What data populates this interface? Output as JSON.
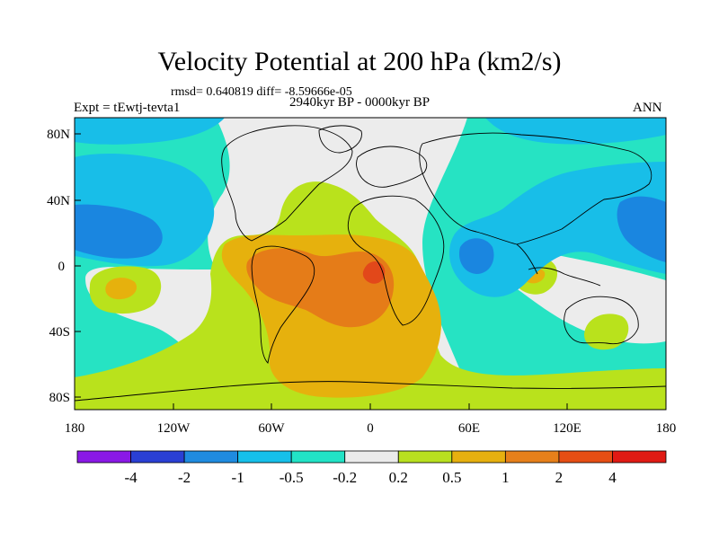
{
  "title": "Velocity Potential at 200 hPa (km2/s)",
  "stats_line": "rmsd= 0.640819 diff= -8.59666e-05",
  "left_label": "Expt = tEwtj-tevta1",
  "center_label": "2940kyr BP - 0000kyr BP",
  "right_label": "ANN",
  "map": {
    "lat_ticks": [
      "80N",
      "40N",
      "0",
      "40S",
      "80S"
    ],
    "lon_ticks": [
      "180",
      "120W",
      "60W",
      "0",
      "60E",
      "120E",
      "180"
    ]
  },
  "colorbar": {
    "labels": [
      "-4",
      "-2",
      "-1",
      "-0.5",
      "-0.2",
      "0.2",
      "0.5",
      "1",
      "2",
      "4"
    ],
    "colors": [
      "#8a19e6",
      "#2a3fd4",
      "#1f8be0",
      "#16c0ea",
      "#22e3c6",
      "#ebebeb",
      "#b8e01f",
      "#e6b00f",
      "#e6801a",
      "#e64e14",
      "#e01a14"
    ]
  },
  "field_colors": {
    "strong_neg": "#1a86e0",
    "neg": "#18bee8",
    "weak_neg": "#26e3c3",
    "neutral": "#ececec",
    "weak_pos": "#b9e21c",
    "pos": "#e6b10d",
    "strong_pos": "#e57c18",
    "max_pos": "#e2481a"
  }
}
